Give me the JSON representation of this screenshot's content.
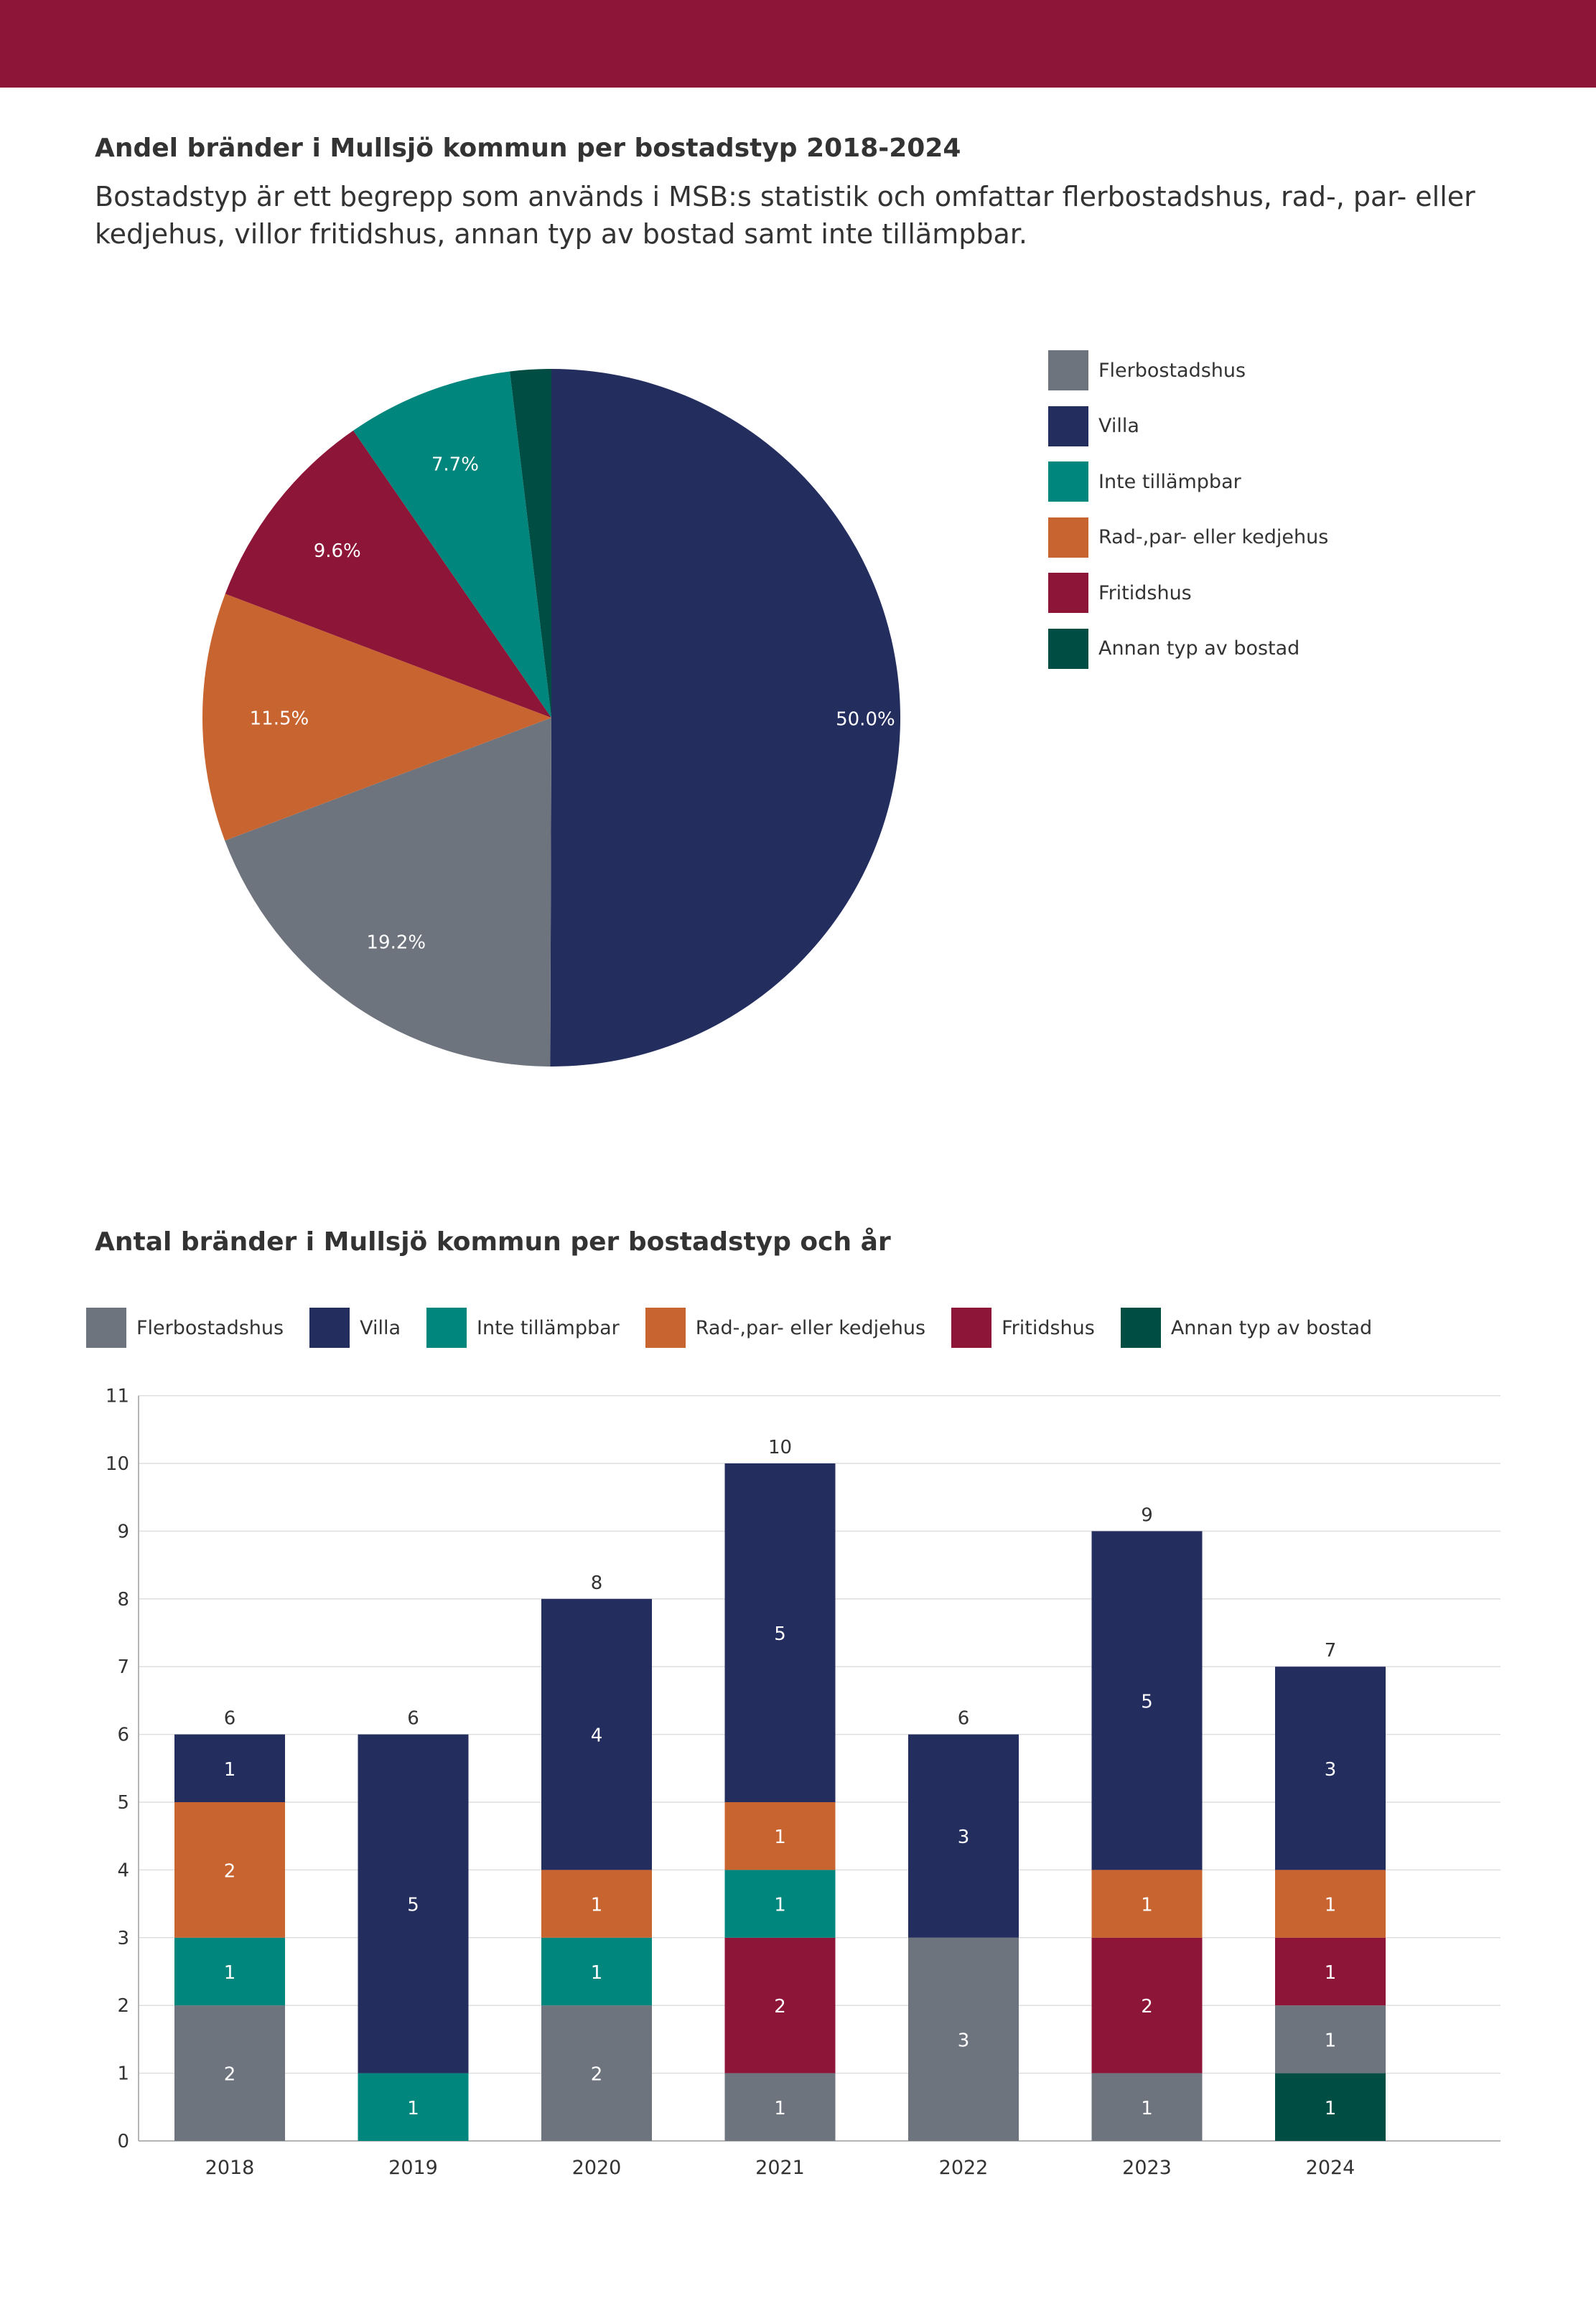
{
  "header": {
    "pie_title": "Andel bränder i Mullsjö kommun per bostadstyp 2018-2024",
    "description": "Bostadstyp är ett begrepp som används i MSB:s statistik och omfattar flerbostadshus, rad-, par- eller kedjehus, villor fritidshus, annan typ av bostad samt inte tillämpbar.",
    "bar_title": "Antal bränder i Mullsjö kommun per bostadstyp och år"
  },
  "colors": {
    "top_bar": "#8c1538",
    "Flerbostadshus": "#6d747e",
    "Villa": "#232d5e",
    "Inte tillämpbar": "#00867c",
    "Rad-,par- eller kedjehus": "#c8642f",
    "Fritidshus": "#8c1538",
    "Annan typ av bostad": "#004d44"
  },
  "chart_data": [
    {
      "type": "pie",
      "title": "Andel bränder i Mullsjö kommun per bostadstyp 2018-2024",
      "legend": [
        "Flerbostadshus",
        "Villa",
        "Inte tillämpbar",
        "Rad-,par- eller kedjehus",
        "Fritidshus",
        "Annan typ av bostad"
      ],
      "legend_position": "right",
      "slices": [
        {
          "name": "Villa",
          "value": 50.0,
          "label": "50.0%"
        },
        {
          "name": "Flerbostadshus",
          "value": 19.2,
          "label": "19.2%"
        },
        {
          "name": "Rad-,par- eller kedjehus",
          "value": 11.5,
          "label": "11.5%"
        },
        {
          "name": "Fritidshus",
          "value": 9.6,
          "label": "9.6%"
        },
        {
          "name": "Inte tillämpbar",
          "value": 7.7,
          "label": "7.7%"
        },
        {
          "name": "Annan typ av bostad",
          "value": 1.9,
          "label": ""
        }
      ]
    },
    {
      "type": "bar",
      "stacked": true,
      "title": "Antal bränder i Mullsjö kommun per bostadstyp och år",
      "categories": [
        "2018",
        "2019",
        "2020",
        "2021",
        "2022",
        "2023",
        "2024"
      ],
      "legend_position": "top",
      "grid": true,
      "ylim": [
        0,
        11
      ],
      "yticks": [
        "0",
        "1",
        "2",
        "3",
        "4",
        "5",
        "6",
        "7",
        "8",
        "9",
        "10",
        "11"
      ],
      "series": [
        {
          "name": "Annan typ av bostad",
          "values": [
            0,
            0,
            0,
            0,
            0,
            0,
            1
          ]
        },
        {
          "name": "Flerbostadshus",
          "values": [
            2,
            0,
            2,
            1,
            3,
            1,
            1
          ]
        },
        {
          "name": "Fritidshus",
          "values": [
            0,
            0,
            0,
            2,
            0,
            2,
            1
          ]
        },
        {
          "name": "Inte tillämpbar",
          "values": [
            1,
            1,
            1,
            1,
            0,
            0,
            0
          ]
        },
        {
          "name": "Rad-,par- eller kedjehus",
          "values": [
            2,
            0,
            1,
            1,
            0,
            1,
            1
          ]
        },
        {
          "name": "Villa",
          "values": [
            1,
            5,
            4,
            5,
            3,
            5,
            3
          ]
        }
      ],
      "totals": [
        "6",
        "6",
        "8",
        "10",
        "6",
        "9",
        "7"
      ]
    }
  ]
}
